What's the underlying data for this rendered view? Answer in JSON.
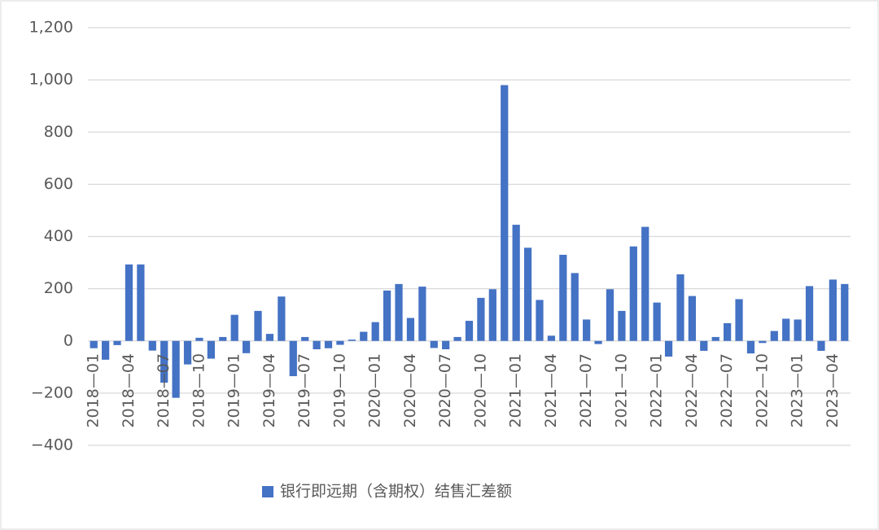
{
  "chart_data": {
    "type": "bar",
    "legend": "bottom",
    "grid": true,
    "categories": [
      "2018—01",
      null,
      null,
      "2018—04",
      null,
      null,
      "2018—07",
      null,
      null,
      "2018—10",
      null,
      null,
      "2019—01",
      null,
      null,
      "2019—04",
      null,
      null,
      "2019—07",
      null,
      null,
      "2019—10",
      null,
      null,
      "2020—01",
      null,
      null,
      "2020—04",
      null,
      null,
      "2020—07",
      null,
      null,
      "2020—10",
      null,
      null,
      "2021—01",
      null,
      null,
      "2021—04",
      null,
      null,
      "2021—07",
      null,
      null,
      "2021—10",
      null,
      null,
      "2022—01",
      null,
      null,
      "2022—04",
      null,
      null,
      "2022—07",
      null,
      null,
      "2022—10",
      null,
      null,
      "2023—01",
      null,
      null,
      "2023—04",
      null
    ],
    "series": [
      {
        "name": "银行即远期（含期权）结售汇差额",
        "color": "#4472c4",
        "values": [
          -28,
          -72,
          -16,
          293,
          293,
          -37,
          -160,
          -218,
          -90,
          12,
          -68,
          15,
          100,
          -47,
          115,
          27,
          170,
          -135,
          15,
          -32,
          -28,
          -15,
          5,
          35,
          72,
          193,
          218,
          88,
          208,
          -27,
          -32,
          15,
          77,
          165,
          198,
          980,
          445,
          357,
          157,
          20,
          330,
          260,
          82,
          -12,
          198,
          115,
          362,
          437,
          147,
          -60,
          255,
          172,
          -38,
          15,
          68,
          160,
          -48,
          -8,
          38,
          85,
          82,
          210,
          -38,
          235,
          218
        ]
      }
    ],
    "ylim": [
      -400,
      1200
    ],
    "yticks": [
      {
        "value": -400,
        "label": "−400"
      },
      {
        "value": -200,
        "label": "−200"
      },
      0,
      200,
      400,
      600,
      800,
      {
        "value": 1000,
        "label": "1,000"
      },
      {
        "value": 1200,
        "label": "1,200"
      }
    ]
  }
}
